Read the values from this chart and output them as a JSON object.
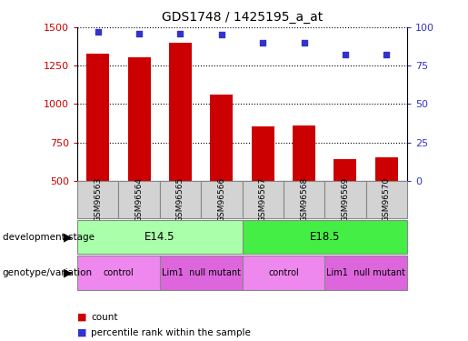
{
  "title": "GDS1748 / 1425195_a_at",
  "samples": [
    "GSM96563",
    "GSM96564",
    "GSM96565",
    "GSM96566",
    "GSM96567",
    "GSM96568",
    "GSM96569",
    "GSM96570"
  ],
  "counts": [
    1330,
    1305,
    1400,
    1060,
    855,
    860,
    640,
    650
  ],
  "percentiles": [
    97,
    96,
    96,
    95,
    90,
    90,
    82,
    82
  ],
  "ylim_left": [
    500,
    1500
  ],
  "ylim_right": [
    0,
    100
  ],
  "yticks_left": [
    500,
    750,
    1000,
    1250,
    1500
  ],
  "yticks_right": [
    0,
    25,
    50,
    75,
    100
  ],
  "bar_color": "#cc0000",
  "dot_color": "#3333cc",
  "bar_width": 0.55,
  "development_stages": [
    {
      "label": "E14.5",
      "span": [
        0,
        4
      ],
      "color": "#aaffaa"
    },
    {
      "label": "E18.5",
      "span": [
        4,
        8
      ],
      "color": "#44ee44"
    }
  ],
  "genotype_groups": [
    {
      "label": "control",
      "span": [
        0,
        2
      ],
      "color": "#ee88ee"
    },
    {
      "label": "Lim1  null mutant",
      "span": [
        2,
        4
      ],
      "color": "#dd66dd"
    },
    {
      "label": "control",
      "span": [
        4,
        6
      ],
      "color": "#ee88ee"
    },
    {
      "label": "Lim1  null mutant",
      "span": [
        6,
        8
      ],
      "color": "#dd66dd"
    }
  ],
  "legend_items": [
    {
      "label": "count",
      "color": "#cc0000"
    },
    {
      "label": "percentile rank within the sample",
      "color": "#3333cc"
    }
  ],
  "left_label_color": "#cc0000",
  "right_label_color": "#3333cc",
  "sample_box_color": "#d3d3d3",
  "left_label": "development stage",
  "bottom_label": "genotype/variation"
}
